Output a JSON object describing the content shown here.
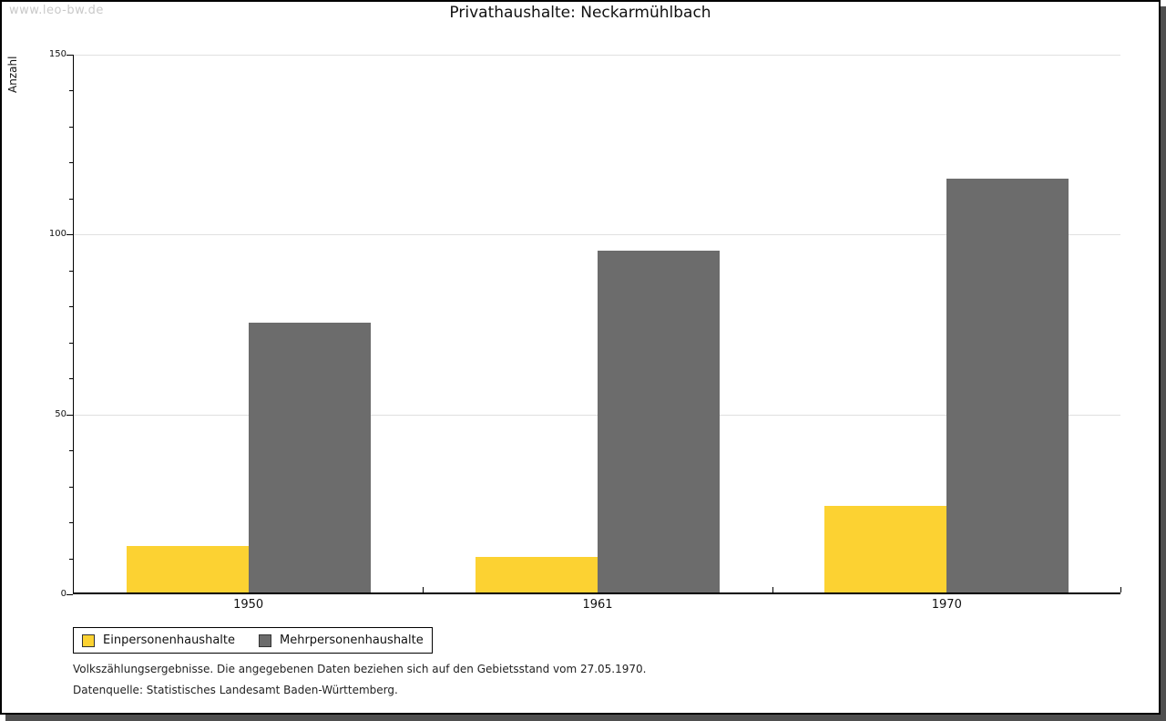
{
  "watermark": "www.leo-bw.de",
  "chart_data": {
    "type": "bar",
    "title": "Privathaushalte: Neckarmühlbach",
    "ylabel": "Anzahl",
    "xlabel": "",
    "categories": [
      "1950",
      "1961",
      "1970"
    ],
    "series": [
      {
        "name": "Einpersonenhaushalte",
        "color": "#FCD232",
        "values": [
          13,
          10,
          24
        ]
      },
      {
        "name": "Mehrpersonenhaushalte",
        "color": "#6C6C6C",
        "values": [
          75,
          95,
          115
        ]
      }
    ],
    "ylim": [
      0,
      150
    ],
    "y_major_ticks": [
      0,
      50,
      100,
      150
    ],
    "y_minor_step": 10,
    "grid": true,
    "legend_position": "bottom-left"
  },
  "footnotes": [
    "Volkszählungsergebnisse. Die angegebenen Daten beziehen sich auf den Gebietsstand vom 27.05.1970.",
    "Datenquelle: Statistisches Landesamt Baden-Württemberg."
  ],
  "colors": {
    "series1": "#FCD232",
    "series2": "#6C6C6C",
    "gridline": "#e0e0e0",
    "watermark": "#c9c9c9",
    "frame_shadow": "#4f4f4f",
    "text": "#111111"
  }
}
